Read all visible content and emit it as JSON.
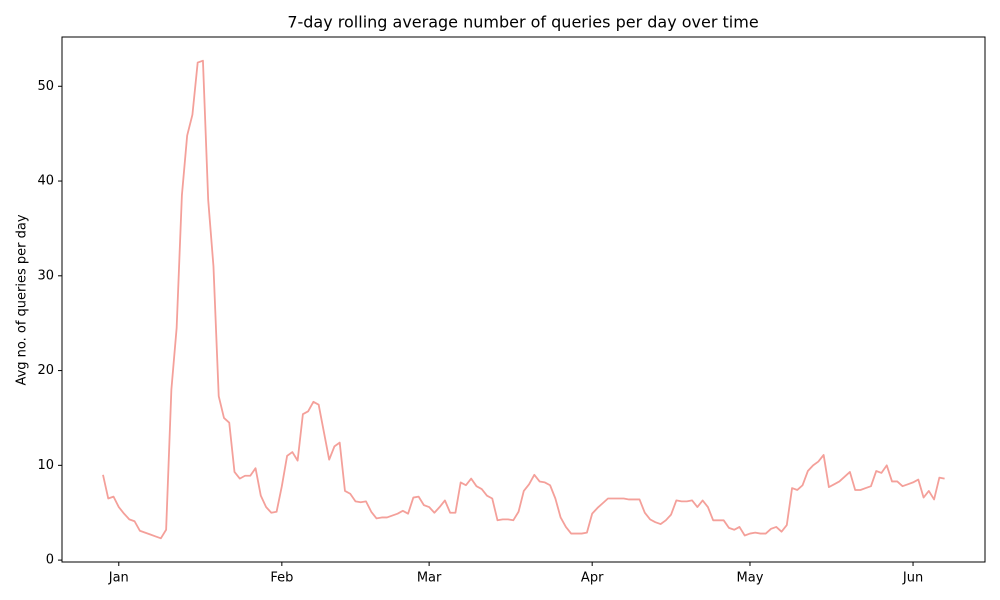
{
  "chart_data": {
    "type": "line",
    "title": "7-day rolling average number of queries per day over time",
    "y_label": "Avg no. of queries per day",
    "color": "#f4a09a",
    "categories": [
      null,
      null,
      null,
      "Jan",
      null,
      null,
      null,
      null,
      null,
      null,
      null,
      null,
      null,
      null,
      null,
      null,
      null,
      null,
      null,
      null,
      null,
      null,
      null,
      null,
      null,
      null,
      null,
      null,
      null,
      null,
      null,
      null,
      null,
      null,
      "Feb",
      null,
      null,
      null,
      null,
      null,
      null,
      null,
      null,
      null,
      null,
      null,
      null,
      null,
      null,
      null,
      null,
      null,
      null,
      null,
      null,
      null,
      null,
      null,
      null,
      null,
      null,
      null,
      "Mar",
      null,
      null,
      null,
      null,
      null,
      null,
      null,
      null,
      null,
      null,
      null,
      null,
      null,
      null,
      null,
      null,
      null,
      null,
      null,
      null,
      null,
      null,
      null,
      null,
      null,
      null,
      null,
      null,
      null,
      null,
      "Apr",
      null,
      null,
      null,
      null,
      null,
      null,
      null,
      null,
      null,
      null,
      null,
      null,
      null,
      null,
      null,
      null,
      null,
      null,
      null,
      null,
      null,
      null,
      null,
      null,
      null,
      null,
      null,
      null,
      null,
      "May",
      null,
      null,
      null,
      null,
      null,
      null,
      null,
      null,
      null,
      null,
      null,
      null,
      null,
      null,
      null,
      null,
      null,
      null,
      null,
      null,
      null,
      null,
      null,
      null,
      null,
      null,
      null,
      null,
      null,
      null,
      "Jun",
      null,
      null,
      null,
      null,
      null,
      null
    ],
    "values": [
      9.0,
      6.5,
      6.7,
      5.6,
      4.9,
      4.3,
      4.1,
      3.1,
      2.9,
      2.7,
      2.5,
      2.3,
      3.2,
      18,
      24.5,
      38.5,
      44.8,
      47,
      52.5,
      52.7,
      38,
      31,
      17.3,
      15,
      14.5,
      9.3,
      8.6,
      8.9,
      8.9,
      9.7,
      6.8,
      5.6,
      5.0,
      5.1,
      7.8,
      11.0,
      11.4,
      10.5,
      15.4,
      15.7,
      16.7,
      16.4,
      13.5,
      10.6,
      12.0,
      12.4,
      7.3,
      7.0,
      6.2,
      6.1,
      6.2,
      5.1,
      4.4,
      4.5,
      4.5,
      4.7,
      4.9,
      5.2,
      4.9,
      6.6,
      6.7,
      5.8,
      5.6,
      5.0,
      5.6,
      6.3,
      5.0,
      5.0,
      8.2,
      7.9,
      8.6,
      7.8,
      7.5,
      6.8,
      6.5,
      4.2,
      4.3,
      4.3,
      4.2,
      5.1,
      7.3,
      8.0,
      9.0,
      8.3,
      8.2,
      7.9,
      6.5,
      4.5,
      3.5,
      2.8,
      2.8,
      2.8,
      2.9,
      4.9,
      5.5,
      6.0,
      6.5,
      6.5,
      6.5,
      6.5,
      6.4,
      6.4,
      6.4,
      5.0,
      4.3,
      4.0,
      3.8,
      4.2,
      4.8,
      6.3,
      6.2,
      6.2,
      6.3,
      5.6,
      6.3,
      5.6,
      4.2,
      4.2,
      4.2,
      3.4,
      3.2,
      3.5,
      2.6,
      2.8,
      2.9,
      2.8,
      2.8,
      3.3,
      3.5,
      3.0,
      3.7,
      7.6,
      7.4,
      7.9,
      9.4,
      10.0,
      10.4,
      11.1,
      7.7,
      8.0,
      8.3,
      8.8,
      9.3,
      7.4,
      7.4,
      7.6,
      7.8,
      9.4,
      9.2,
      10.0,
      8.3,
      8.3,
      7.8,
      8.0,
      8.2,
      8.5,
      6.6,
      7.3,
      6.4,
      8.7,
      8.6
    ],
    "ylim": [
      -0.2,
      55.2
    ],
    "yticks": [
      0,
      10,
      20,
      30,
      40,
      50
    ],
    "grid": false
  }
}
